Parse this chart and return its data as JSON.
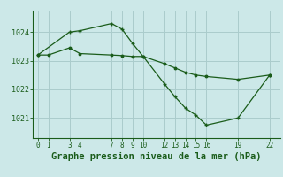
{
  "bg_color": "#cce8e8",
  "grid_color": "#aacccc",
  "line_color": "#1a5c1a",
  "title": "Graphe pression niveau de la mer (hPa)",
  "title_color": "#1a5c1a",
  "title_fontsize": 7.5,
  "yticks": [
    1021,
    1022,
    1023,
    1024
  ],
  "xticks": [
    0,
    1,
    3,
    4,
    7,
    8,
    9,
    10,
    12,
    13,
    14,
    15,
    16,
    19,
    22
  ],
  "xlim": [
    -0.5,
    23.0
  ],
  "ylim": [
    1020.3,
    1024.75
  ],
  "line1_x": [
    0,
    1,
    3,
    4,
    7,
    8,
    9,
    10,
    12,
    13,
    14,
    15,
    16,
    19,
    22
  ],
  "line1_y": [
    1023.2,
    1023.2,
    1023.45,
    1023.25,
    1023.2,
    1023.18,
    1023.15,
    1023.15,
    1022.9,
    1022.75,
    1022.6,
    1022.5,
    1022.45,
    1022.35,
    1022.5
  ],
  "line2_x": [
    0,
    3,
    4,
    7,
    8,
    9,
    10,
    12,
    13,
    14,
    15,
    16,
    19,
    22
  ],
  "line2_y": [
    1023.2,
    1024.0,
    1024.05,
    1024.3,
    1024.1,
    1023.6,
    1023.15,
    1022.2,
    1021.75,
    1021.35,
    1021.1,
    1020.75,
    1021.0,
    1022.5
  ]
}
